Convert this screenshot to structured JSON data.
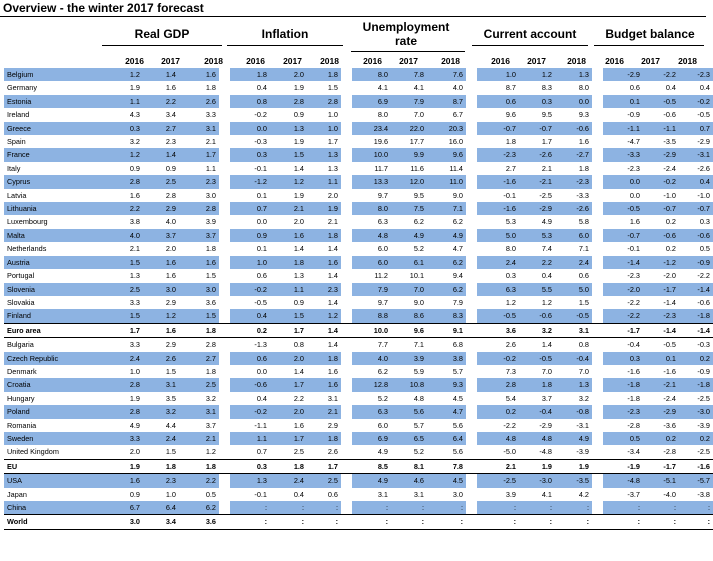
{
  "title": "Overview - the winter 2017 forecast",
  "groups": [
    "Real GDP",
    "Inflation",
    "Unemployment rate",
    "Current account",
    "Budget balance"
  ],
  "years": [
    "2016",
    "2017",
    "2018"
  ],
  "rows": [
    {
      "country": "Belgium",
      "vals": [
        "1.2",
        "1.4",
        "1.6",
        "1.8",
        "2.0",
        "1.8",
        "8.0",
        "7.8",
        "7.6",
        "1.0",
        "1.2",
        "1.3",
        "-2.9",
        "-2.2",
        "-2.3"
      ]
    },
    {
      "country": "Germany",
      "vals": [
        "1.9",
        "1.6",
        "1.8",
        "0.4",
        "1.9",
        "1.5",
        "4.1",
        "4.1",
        "4.0",
        "8.7",
        "8.3",
        "8.0",
        "0.6",
        "0.4",
        "0.4"
      ]
    },
    {
      "country": "Estonia",
      "vals": [
        "1.1",
        "2.2",
        "2.6",
        "0.8",
        "2.8",
        "2.8",
        "6.9",
        "7.9",
        "8.7",
        "0.6",
        "0.3",
        "0.0",
        "0.1",
        "-0.5",
        "-0.2"
      ]
    },
    {
      "country": "Ireland",
      "vals": [
        "4.3",
        "3.4",
        "3.3",
        "-0.2",
        "0.9",
        "1.0",
        "8.0",
        "7.0",
        "6.7",
        "9.6",
        "9.5",
        "9.3",
        "-0.9",
        "-0.6",
        "-0.5"
      ]
    },
    {
      "country": "Greece",
      "vals": [
        "0.3",
        "2.7",
        "3.1",
        "0.0",
        "1.3",
        "1.0",
        "23.4",
        "22.0",
        "20.3",
        "-0.7",
        "-0.7",
        "-0.6",
        "-1.1",
        "-1.1",
        "0.7"
      ]
    },
    {
      "country": "Spain",
      "vals": [
        "3.2",
        "2.3",
        "2.1",
        "-0.3",
        "1.9",
        "1.7",
        "19.6",
        "17.7",
        "16.0",
        "1.8",
        "1.7",
        "1.6",
        "-4.7",
        "-3.5",
        "-2.9"
      ]
    },
    {
      "country": "France",
      "vals": [
        "1.2",
        "1.4",
        "1.7",
        "0.3",
        "1.5",
        "1.3",
        "10.0",
        "9.9",
        "9.6",
        "-2.3",
        "-2.6",
        "-2.7",
        "-3.3",
        "-2.9",
        "-3.1"
      ]
    },
    {
      "country": "Italy",
      "vals": [
        "0.9",
        "0.9",
        "1.1",
        "-0.1",
        "1.4",
        "1.3",
        "11.7",
        "11.6",
        "11.4",
        "2.7",
        "2.1",
        "1.8",
        "-2.3",
        "-2.4",
        "-2.6"
      ]
    },
    {
      "country": "Cyprus",
      "vals": [
        "2.8",
        "2.5",
        "2.3",
        "-1.2",
        "1.2",
        "1.1",
        "13.3",
        "12.0",
        "11.0",
        "-1.6",
        "-2.1",
        "-2.3",
        "0.0",
        "-0.2",
        "0.4"
      ]
    },
    {
      "country": "Latvia",
      "vals": [
        "1.6",
        "2.8",
        "3.0",
        "0.1",
        "1.9",
        "2.0",
        "9.7",
        "9.5",
        "9.0",
        "-0.1",
        "-2.5",
        "-3.3",
        "0.0",
        "-1.0",
        "-1.0"
      ]
    },
    {
      "country": "Lithuania",
      "vals": [
        "2.2",
        "2.9",
        "2.8",
        "0.7",
        "2.1",
        "1.9",
        "8.0",
        "7.5",
        "7.1",
        "-1.6",
        "-2.9",
        "-2.6",
        "-0.5",
        "-0.7",
        "-0.7"
      ]
    },
    {
      "country": "Luxembourg",
      "vals": [
        "3.8",
        "4.0",
        "3.9",
        "0.0",
        "2.0",
        "2.1",
        "6.3",
        "6.2",
        "6.2",
        "5.3",
        "4.9",
        "5.8",
        "1.6",
        "0.2",
        "0.3"
      ]
    },
    {
      "country": "Malta",
      "vals": [
        "4.0",
        "3.7",
        "3.7",
        "0.9",
        "1.6",
        "1.8",
        "4.8",
        "4.9",
        "4.9",
        "5.0",
        "5.3",
        "6.0",
        "-0.7",
        "-0.6",
        "-0.6"
      ]
    },
    {
      "country": "Netherlands",
      "vals": [
        "2.1",
        "2.0",
        "1.8",
        "0.1",
        "1.4",
        "1.4",
        "6.0",
        "5.2",
        "4.7",
        "8.0",
        "7.4",
        "7.1",
        "-0.1",
        "0.2",
        "0.5"
      ]
    },
    {
      "country": "Austria",
      "vals": [
        "1.5",
        "1.6",
        "1.6",
        "1.0",
        "1.8",
        "1.6",
        "6.0",
        "6.1",
        "6.2",
        "2.4",
        "2.2",
        "2.4",
        "-1.4",
        "-1.2",
        "-0.9"
      ]
    },
    {
      "country": "Portugal",
      "vals": [
        "1.3",
        "1.6",
        "1.5",
        "0.6",
        "1.3",
        "1.4",
        "11.2",
        "10.1",
        "9.4",
        "0.3",
        "0.4",
        "0.6",
        "-2.3",
        "-2.0",
        "-2.2"
      ]
    },
    {
      "country": "Slovenia",
      "vals": [
        "2.5",
        "3.0",
        "3.0",
        "-0.2",
        "1.1",
        "2.3",
        "7.9",
        "7.0",
        "6.2",
        "6.3",
        "5.5",
        "5.0",
        "-2.0",
        "-1.7",
        "-1.4"
      ]
    },
    {
      "country": "Slovakia",
      "vals": [
        "3.3",
        "2.9",
        "3.6",
        "-0.5",
        "0.9",
        "1.4",
        "9.7",
        "9.0",
        "7.9",
        "1.2",
        "1.2",
        "1.5",
        "-2.2",
        "-1.4",
        "-0.6"
      ]
    },
    {
      "country": "Finland",
      "vals": [
        "1.5",
        "1.2",
        "1.5",
        "0.4",
        "1.5",
        "1.2",
        "8.8",
        "8.6",
        "8.3",
        "-0.5",
        "-0.6",
        "-0.5",
        "-2.2",
        "-2.3",
        "-1.8"
      ]
    },
    {
      "country": "Euro area",
      "bold": true,
      "vals": [
        "1.7",
        "1.6",
        "1.8",
        "0.2",
        "1.7",
        "1.4",
        "10.0",
        "9.6",
        "9.1",
        "3.6",
        "3.2",
        "3.1",
        "-1.7",
        "-1.4",
        "-1.4"
      ]
    },
    {
      "country": "Bulgaria",
      "vals": [
        "3.3",
        "2.9",
        "2.8",
        "-1.3",
        "0.8",
        "1.4",
        "7.7",
        "7.1",
        "6.8",
        "2.6",
        "1.4",
        "0.8",
        "-0.4",
        "-0.5",
        "-0.3"
      ]
    },
    {
      "country": "Czech Republic",
      "vals": [
        "2.4",
        "2.6",
        "2.7",
        "0.6",
        "2.0",
        "1.8",
        "4.0",
        "3.9",
        "3.8",
        "-0.2",
        "-0.5",
        "-0.4",
        "0.3",
        "0.1",
        "0.2"
      ]
    },
    {
      "country": "Denmark",
      "vals": [
        "1.0",
        "1.5",
        "1.8",
        "0.0",
        "1.4",
        "1.6",
        "6.2",
        "5.9",
        "5.7",
        "7.3",
        "7.0",
        "7.0",
        "-1.6",
        "-1.6",
        "-0.9"
      ]
    },
    {
      "country": "Croatia",
      "vals": [
        "2.8",
        "3.1",
        "2.5",
        "-0.6",
        "1.7",
        "1.6",
        "12.8",
        "10.8",
        "9.3",
        "2.8",
        "1.8",
        "1.3",
        "-1.8",
        "-2.1",
        "-1.8"
      ]
    },
    {
      "country": "Hungary",
      "vals": [
        "1.9",
        "3.5",
        "3.2",
        "0.4",
        "2.2",
        "3.1",
        "5.2",
        "4.8",
        "4.5",
        "5.4",
        "3.7",
        "3.2",
        "-1.8",
        "-2.4",
        "-2.5"
      ]
    },
    {
      "country": "Poland",
      "vals": [
        "2.8",
        "3.2",
        "3.1",
        "-0.2",
        "2.0",
        "2.1",
        "6.3",
        "5.6",
        "4.7",
        "0.2",
        "-0.4",
        "-0.8",
        "-2.3",
        "-2.9",
        "-3.0"
      ]
    },
    {
      "country": "Romania",
      "vals": [
        "4.9",
        "4.4",
        "3.7",
        "-1.1",
        "1.6",
        "2.9",
        "6.0",
        "5.7",
        "5.6",
        "-2.2",
        "-2.9",
        "-3.1",
        "-2.8",
        "-3.6",
        "-3.9"
      ]
    },
    {
      "country": "Sweden",
      "vals": [
        "3.3",
        "2.4",
        "2.1",
        "1.1",
        "1.7",
        "1.8",
        "6.9",
        "6.5",
        "6.4",
        "4.8",
        "4.8",
        "4.9",
        "0.5",
        "0.2",
        "0.2"
      ]
    },
    {
      "country": "United Kingdom",
      "vals": [
        "2.0",
        "1.5",
        "1.2",
        "0.7",
        "2.5",
        "2.6",
        "4.9",
        "5.2",
        "5.6",
        "-5.0",
        "-4.8",
        "-3.9",
        "-3.4",
        "-2.8",
        "-2.5"
      ]
    },
    {
      "country": "EU",
      "bold": true,
      "vals": [
        "1.9",
        "1.8",
        "1.8",
        "0.3",
        "1.8",
        "1.7",
        "8.5",
        "8.1",
        "7.8",
        "2.1",
        "1.9",
        "1.9",
        "-1.9",
        "-1.7",
        "-1.6"
      ]
    },
    {
      "country": "USA",
      "vals": [
        "1.6",
        "2.3",
        "2.2",
        "1.3",
        "2.4",
        "2.5",
        "4.9",
        "4.6",
        "4.5",
        "-2.5",
        "-3.0",
        "-3.5",
        "-4.8",
        "-5.1",
        "-5.7"
      ]
    },
    {
      "country": "Japan",
      "vals": [
        "0.9",
        "1.0",
        "0.5",
        "-0.1",
        "0.4",
        "0.6",
        "3.1",
        "3.1",
        "3.0",
        "3.9",
        "4.1",
        "4.2",
        "-3.7",
        "-4.0",
        "-3.8"
      ]
    },
    {
      "country": "China",
      "vals": [
        "6.7",
        "6.4",
        "6.2",
        ":",
        ":",
        ":",
        ":",
        ":",
        ":",
        ":",
        ":",
        ":",
        ":",
        ":",
        ":"
      ]
    },
    {
      "country": "World",
      "bold": true,
      "vals": [
        "3.0",
        "3.4",
        "3.6",
        ":",
        ":",
        ":",
        ":",
        ":",
        ":",
        ":",
        ":",
        ":",
        ":",
        ":",
        ":"
      ]
    }
  ]
}
